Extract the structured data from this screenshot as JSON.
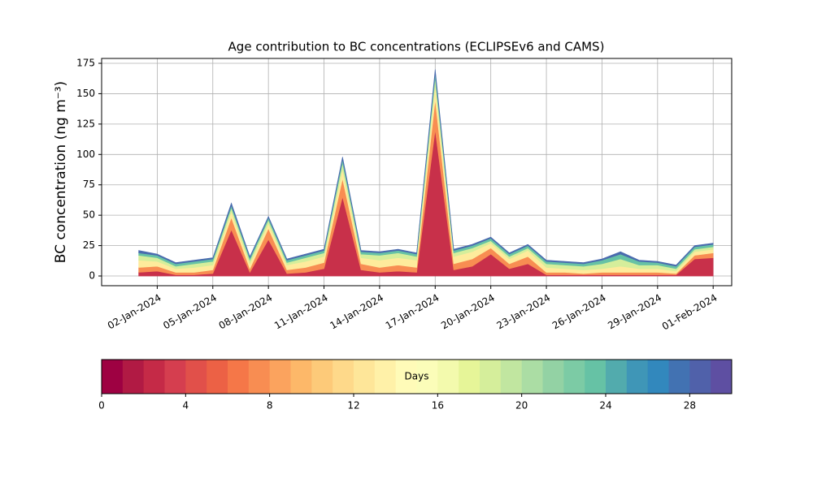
{
  "chart_data": {
    "type": "stacked-area",
    "title": "Age contribution to BC concentrations (ECLIPSEv6 and CAMS)",
    "y_label": "BC concentration (ng m⁻³)",
    "x": [
      "01-Jan-2024",
      "02-Jan-2024",
      "03-Jan-2024",
      "04-Jan-2024",
      "05-Jan-2024",
      "06-Jan-2024",
      "07-Jan-2024",
      "08-Jan-2024",
      "09-Jan-2024",
      "10-Jan-2024",
      "11-Jan-2024",
      "12-Jan-2024",
      "13-Jan-2024",
      "14-Jan-2024",
      "15-Jan-2024",
      "16-Jan-2024",
      "17-Jan-2024",
      "18-Jan-2024",
      "19-Jan-2024",
      "20-Jan-2024",
      "21-Jan-2024",
      "22-Jan-2024",
      "23-Jan-2024",
      "24-Jan-2024",
      "25-Jan-2024",
      "26-Jan-2024",
      "27-Jan-2024",
      "28-Jan-2024",
      "29-Jan-2024",
      "30-Jan-2024",
      "31-Jan-2024",
      "01-Feb-2024"
    ],
    "series": [
      {
        "color": "#c8304a",
        "values": [
          3,
          4,
          1,
          1,
          2,
          38,
          3,
          30,
          2,
          3,
          6,
          65,
          5,
          3,
          4,
          3,
          120,
          5,
          8,
          18,
          6,
          10,
          1,
          1,
          1,
          1,
          1,
          1,
          1,
          1,
          14,
          15
        ]
      },
      {
        "color": "#f88d52",
        "values": [
          4,
          4,
          2,
          2,
          3,
          10,
          3,
          9,
          3,
          4,
          5,
          15,
          5,
          4,
          5,
          4,
          25,
          5,
          6,
          5,
          4,
          6,
          2,
          2,
          1,
          2,
          2,
          2,
          2,
          1,
          3,
          4
        ]
      },
      {
        "color": "#feeb9c",
        "values": [
          6,
          4,
          3,
          4,
          4,
          5,
          4,
          4,
          4,
          5,
          5,
          8,
          5,
          6,
          6,
          6,
          12,
          6,
          6,
          4,
          4,
          5,
          4,
          3,
          3,
          3,
          5,
          3,
          3,
          2,
          3,
          3
        ]
      },
      {
        "color": "#d5ee9b",
        "values": [
          4,
          3,
          2,
          3,
          3,
          3,
          3,
          3,
          2,
          3,
          3,
          5,
          3,
          4,
          4,
          3,
          6,
          3,
          3,
          2,
          2,
          2,
          3,
          3,
          3,
          4,
          6,
          3,
          3,
          2,
          2,
          2
        ]
      },
      {
        "color": "#66c2a5",
        "values": [
          2,
          2,
          2,
          2,
          2,
          2,
          2,
          2,
          2,
          2,
          2,
          3,
          2,
          2,
          2,
          2,
          4,
          2,
          2,
          2,
          2,
          2,
          2,
          2,
          2,
          3,
          4,
          3,
          2,
          2,
          2,
          2
        ]
      },
      {
        "color": "#4a6bae",
        "values": [
          2,
          1,
          1,
          1,
          1,
          2,
          1,
          1,
          1,
          1,
          1,
          2,
          1,
          1,
          1,
          1,
          3,
          1,
          1,
          1,
          1,
          1,
          1,
          1,
          1,
          1,
          2,
          1,
          1,
          1,
          1,
          1
        ]
      }
    ],
    "xlim": [
      "30-Dec-2023",
      "02-Feb-2024"
    ],
    "xticks": [
      "02-Jan-2024",
      "05-Jan-2024",
      "08-Jan-2024",
      "11-Jan-2024",
      "14-Jan-2024",
      "17-Jan-2024",
      "20-Jan-2024",
      "23-Jan-2024",
      "26-Jan-2024",
      "29-Jan-2024",
      "01-Feb-2024"
    ],
    "ylim": [
      -8,
      179
    ],
    "yticks": [
      0,
      25,
      50,
      75,
      100,
      125,
      150,
      175
    ],
    "grid": true,
    "colorbar": {
      "label": "Days",
      "range": [
        0,
        30
      ],
      "ticks": [
        0,
        4,
        8,
        12,
        16,
        20,
        24,
        28
      ],
      "colors": [
        "#9e0142",
        "#b11a44",
        "#c52a47",
        "#d53e4f",
        "#e1504a",
        "#ec6145",
        "#f57748",
        "#f88d52",
        "#fba35e",
        "#fdb869",
        "#fdca79",
        "#fed98a",
        "#fee699",
        "#fff1a8",
        "#fffbb8",
        "#fbfdb9",
        "#f3faad",
        "#e6f598",
        "#d5ee9b",
        "#c1e6a0",
        "#abdda4",
        "#93d2a4",
        "#7ccba5",
        "#66c2a5",
        "#52abad",
        "#3f96b7",
        "#3288bd",
        "#4272b2",
        "#5061aa",
        "#5e4fa2"
      ]
    }
  }
}
